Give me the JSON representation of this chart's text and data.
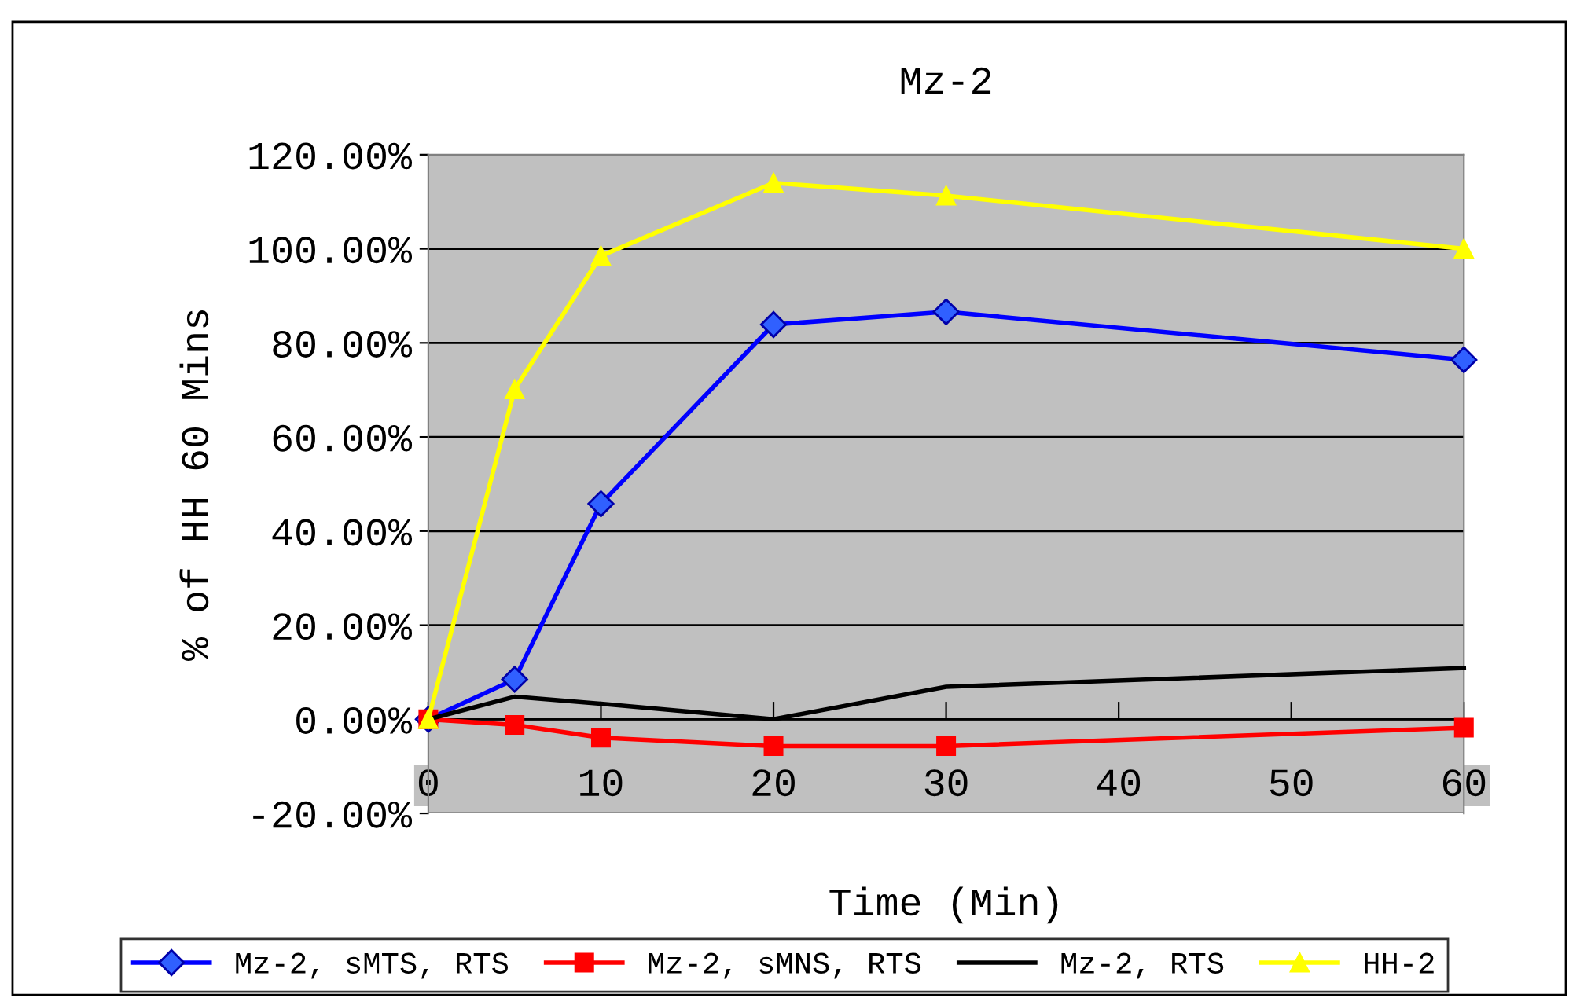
{
  "chart_data": {
    "type": "line",
    "title": "Mz-2",
    "xlabel": "Time (Min)",
    "ylabel": "% of HH 60 Mins",
    "x": [
      0,
      5,
      10,
      20,
      30,
      60
    ],
    "series": [
      {
        "name": "Mz-2, sMTS, RTS",
        "color": "#0000ff",
        "marker": "diamond",
        "values": [
          0,
          8.5,
          45.8,
          83.9,
          86.6,
          76.4
        ]
      },
      {
        "name": "Mz-2, sMNS, RTS",
        "color": "#ff0000",
        "marker": "square",
        "values": [
          0,
          -1.2,
          -3.9,
          -5.7,
          -5.7,
          -1.8
        ]
      },
      {
        "name": "Mz-2, RTS",
        "color": "#000000",
        "marker": "none",
        "values": [
          0,
          4.8,
          3.3,
          0,
          6.9,
          10.9
        ]
      },
      {
        "name": "HH-2",
        "color": "#ffff00",
        "marker": "triangle",
        "values": [
          0,
          70.1,
          98.5,
          114,
          111.3,
          100
        ]
      }
    ],
    "xlim": [
      0,
      60
    ],
    "xticks": [
      0,
      10,
      20,
      30,
      40,
      50,
      60
    ],
    "ylim": [
      -20,
      120
    ],
    "yticks": [
      {
        "value": -20,
        "label": "-20.00%"
      },
      {
        "value": 0,
        "label": "0.00%"
      },
      {
        "value": 20,
        "label": "20.00%"
      },
      {
        "value": 40,
        "label": "40.00%"
      },
      {
        "value": 60,
        "label": "60.00%"
      },
      {
        "value": 80,
        "label": "80.00%"
      },
      {
        "value": 100,
        "label": "100.00%"
      },
      {
        "value": 120,
        "label": "120.00%"
      }
    ],
    "grid": "y",
    "legend": "bottom",
    "line_style": "solid"
  }
}
